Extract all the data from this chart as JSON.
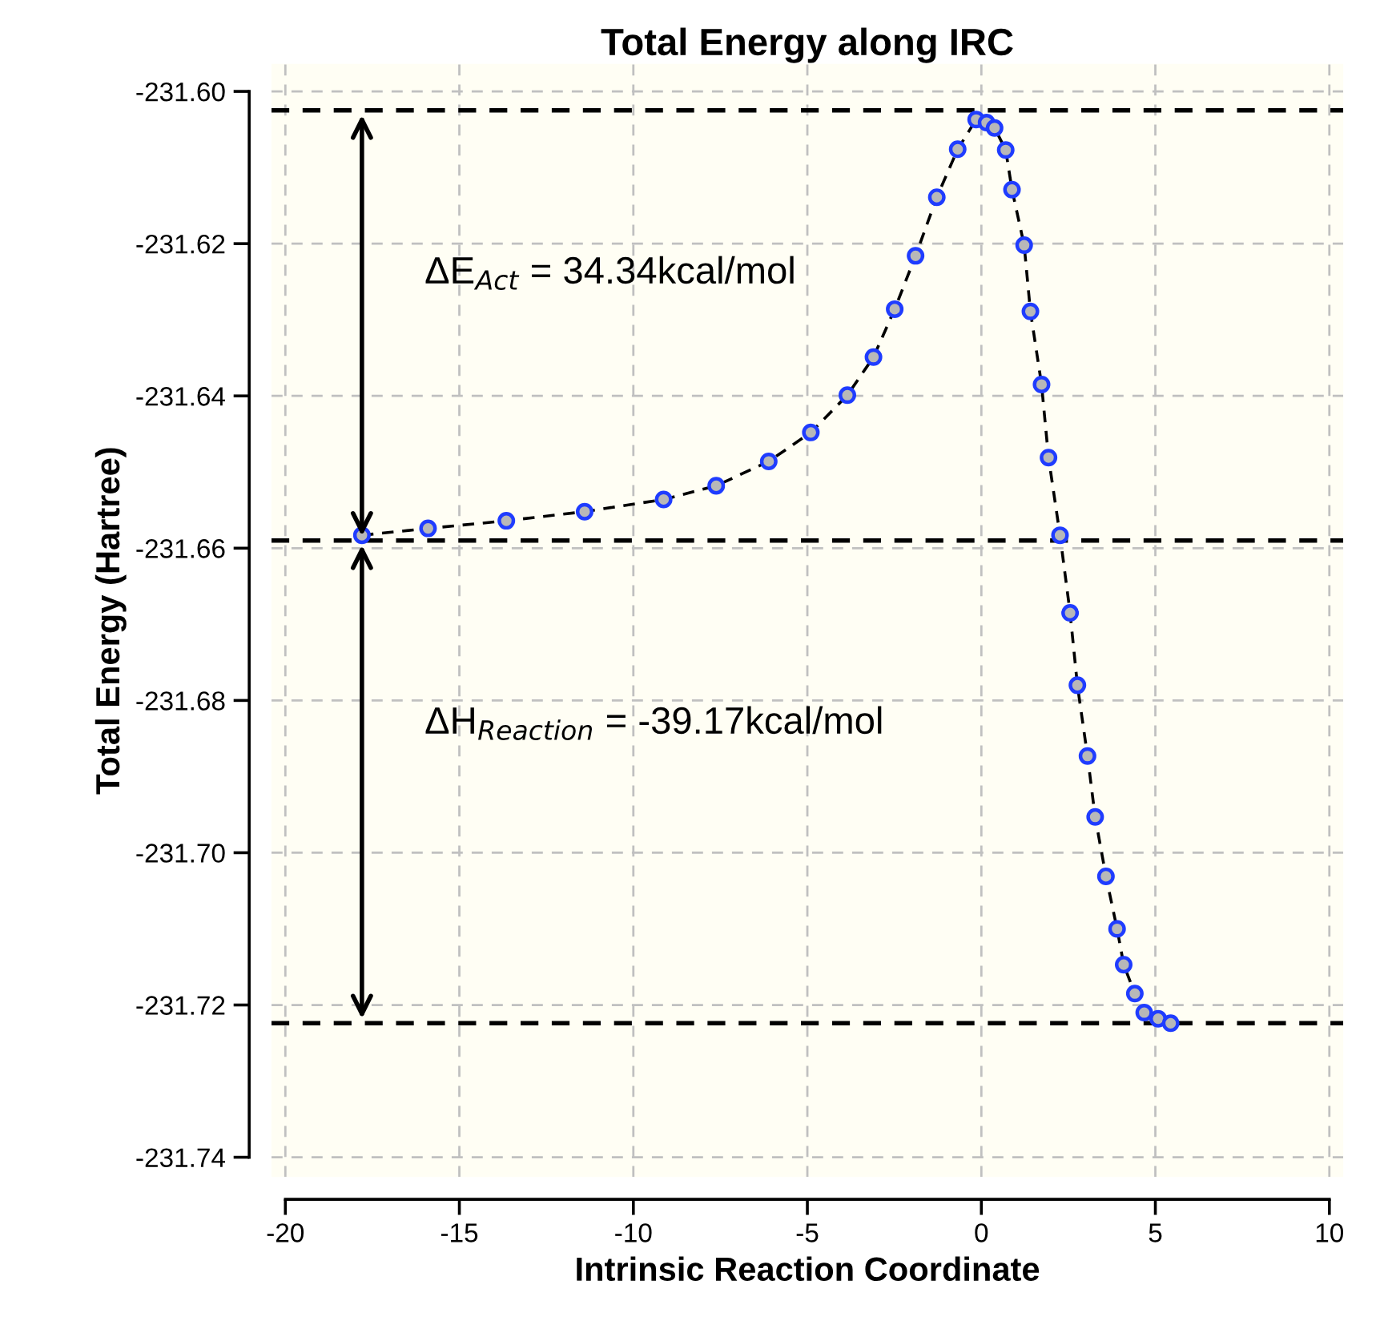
{
  "chart_data": {
    "type": "line",
    "title": "Total Energy along IRC",
    "xlabel": "Intrinsic Reaction Coordinate",
    "ylabel": "Total Energy (Hartree)",
    "series": [
      {
        "color": "#000000",
        "line_style": "dashed",
        "marker": "none",
        "x": [
          -17.8,
          -15.9,
          -13.65,
          -11.4,
          -9.13,
          -7.62,
          -6.11,
          -4.9,
          -3.85,
          -3.1,
          -2.49,
          -1.89,
          -1.28,
          -0.68,
          -0.15,
          0.15,
          0.38,
          0.7,
          0.88,
          1.23,
          1.41,
          1.73,
          1.93,
          2.26,
          2.55,
          2.76,
          3.05,
          3.27,
          3.58,
          3.9,
          4.09,
          4.41,
          4.68,
          5.08,
          5.44
        ],
        "values": [
          -231.6583,
          -231.6574,
          -231.6564,
          -231.6552,
          -231.6536,
          -231.6518,
          -231.6486,
          -231.6448,
          -231.6399,
          -231.6349,
          -231.6286,
          -231.6216,
          -231.6139,
          -231.6076,
          -231.6037,
          -231.6041,
          -231.6048,
          -231.6077,
          -231.6129,
          -231.6202,
          -231.6289,
          -231.6385,
          -231.6481,
          -231.6583,
          -231.6685,
          -231.678,
          -231.6873,
          -231.6953,
          -231.7031,
          -231.71,
          -231.7147,
          -231.7185,
          -231.721,
          -231.7218,
          -231.7224
        ]
      },
      {
        "type": "scatter",
        "color": "#1f3cff",
        "marker": "circle",
        "x": [
          -17.8,
          -15.9,
          -13.65,
          -11.4,
          -9.13,
          -7.62,
          -6.11,
          -4.9,
          -3.85,
          -3.1,
          -2.49,
          -1.89,
          -1.28,
          -0.68,
          -0.15,
          0.15,
          0.38,
          0.7,
          0.88,
          1.23,
          1.41,
          1.73,
          1.93,
          2.26,
          2.55,
          2.76,
          3.05,
          3.27,
          3.58,
          3.9,
          4.09,
          4.41,
          4.68,
          5.08,
          5.44
        ],
        "values": [
          -231.6583,
          -231.6574,
          -231.6564,
          -231.6552,
          -231.6536,
          -231.6518,
          -231.6486,
          -231.6448,
          -231.6399,
          -231.6349,
          -231.6286,
          -231.6216,
          -231.6139,
          -231.6076,
          -231.6037,
          -231.6041,
          -231.6048,
          -231.6077,
          -231.6129,
          -231.6202,
          -231.6289,
          -231.6385,
          -231.6481,
          -231.6583,
          -231.6685,
          -231.678,
          -231.6873,
          -231.6953,
          -231.7031,
          -231.71,
          -231.7147,
          -231.7185,
          -231.721,
          -231.7218,
          -231.7224
        ]
      }
    ],
    "ref_lines": [
      {
        "axis": "y",
        "value": -231.6025,
        "color": "#000000",
        "line_style": "dashed"
      },
      {
        "axis": "y",
        "value": -231.659,
        "color": "#000000",
        "line_style": "dashed"
      },
      {
        "axis": "y",
        "value": -231.7224,
        "color": "#000000",
        "line_style": "dashed"
      }
    ],
    "annotations": [
      "ΔE$_{Act}$ = 34.34kcal/mol",
      "ΔH$_{Reaction}$ = -39.17kcal/mol"
    ],
    "xlim": [
      -20.4,
      10.4
    ],
    "ylim": [
      -231.7426,
      -231.5964
    ],
    "xticks": [
      -20,
      -15,
      -10,
      -5,
      0,
      5,
      10
    ],
    "yticks": [
      {
        "value": -231.74,
        "label": "-231.74"
      },
      {
        "value": -231.72,
        "label": "-231.72"
      },
      {
        "value": -231.7,
        "label": "-231.70"
      },
      {
        "value": -231.68,
        "label": "-231.68"
      },
      {
        "value": -231.66,
        "label": "-231.66"
      },
      {
        "value": -231.64,
        "label": "-231.64"
      },
      {
        "value": -231.62,
        "label": "-231.62"
      },
      {
        "value": -231.6,
        "label": "-231.60"
      }
    ],
    "grid": true
  }
}
